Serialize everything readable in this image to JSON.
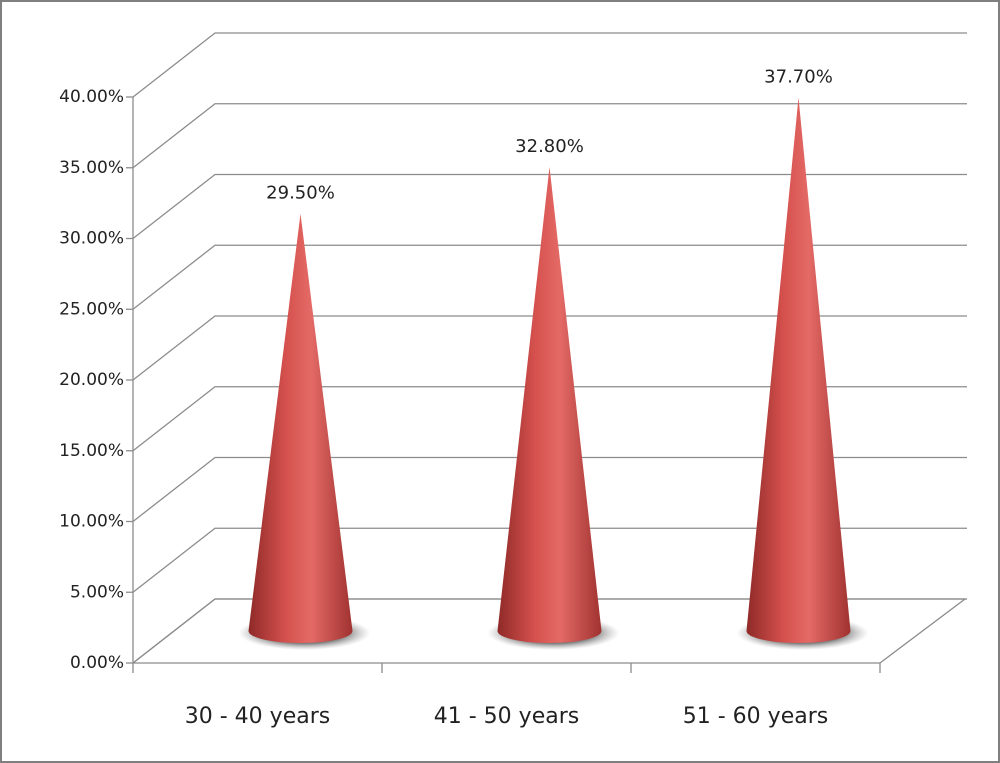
{
  "chart_data": {
    "type": "cone",
    "categories": [
      "30 - 40 years",
      "41 - 50 years",
      "51 - 60 years"
    ],
    "values": [
      29.5,
      32.8,
      37.7
    ],
    "value_labels": [
      "29.50%",
      "32.80%",
      "37.70%"
    ],
    "color": "#c0504d",
    "ylim": [
      0,
      40
    ],
    "yticks": [
      {
        "value": 0,
        "label": "0.00%"
      },
      {
        "value": 5,
        "label": "5.00%"
      },
      {
        "value": 10,
        "label": "10.00%"
      },
      {
        "value": 15,
        "label": "15.00%"
      },
      {
        "value": 20,
        "label": "20.00%"
      },
      {
        "value": 25,
        "label": "25.00%"
      },
      {
        "value": 30,
        "label": "30.00%"
      },
      {
        "value": 35,
        "label": "35.00%"
      },
      {
        "value": 40,
        "label": "40.00%"
      }
    ],
    "grid": true
  }
}
